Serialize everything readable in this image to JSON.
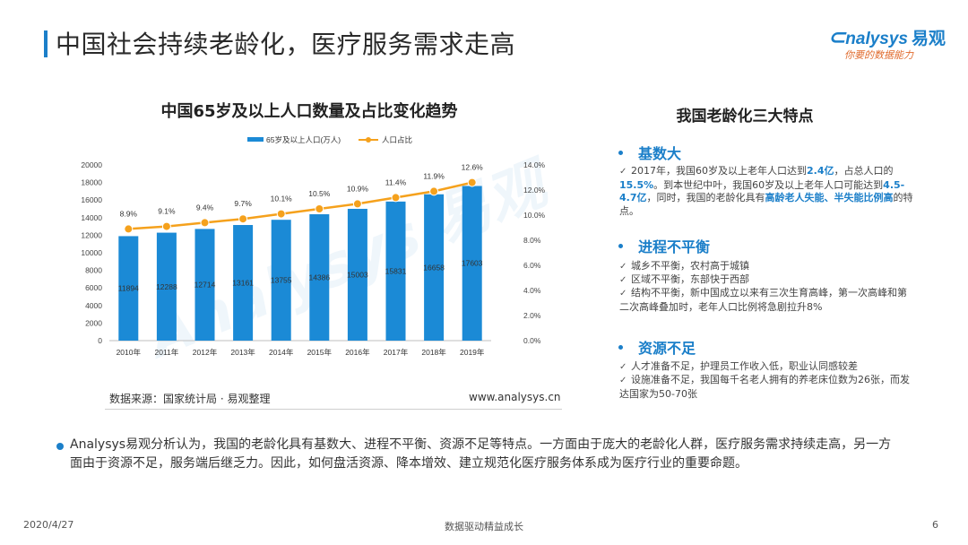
{
  "header": {
    "title": "中国社会持续老龄化，医疗服务需求走高",
    "logo_main": "nalysys",
    "logo_cn": "易观",
    "logo_sub": "你要的数据能力"
  },
  "chart_title": "中国65岁及以上人口数量及占比变化趋势",
  "chart_data": {
    "type": "bar+line",
    "categories": [
      "2010年",
      "2011年",
      "2012年",
      "2013年",
      "2014年",
      "2015年",
      "2016年",
      "2017年",
      "2018年",
      "2019年"
    ],
    "series": [
      {
        "name": "65岁及以上人口(万人)",
        "type": "bar",
        "axis": "left",
        "color": "#1b8ad6",
        "values": [
          11894,
          12288,
          12714,
          13161,
          13755,
          14386,
          15003,
          15831,
          16658,
          17603
        ]
      },
      {
        "name": "人口占比",
        "type": "line",
        "axis": "right",
        "color": "#f5a11c",
        "values": [
          8.9,
          9.1,
          9.4,
          9.7,
          10.1,
          10.5,
          10.9,
          11.4,
          11.9,
          12.6
        ]
      }
    ],
    "bar_labels": [
      "11894",
      "12288",
      "12714",
      "13161",
      "13755",
      "14386",
      "15003",
      "15831",
      "16658",
      "17603"
    ],
    "line_labels": [
      "8.9%",
      "9.1%",
      "9.4%",
      "9.7%",
      "10.1%",
      "10.5%",
      "10.9%",
      "11.4%",
      "11.9%",
      "12.6%"
    ],
    "y_left": {
      "min": 0,
      "max": 20000,
      "ticks": [
        "0",
        "2000",
        "4000",
        "6000",
        "8000",
        "10000",
        "12000",
        "14000",
        "16000",
        "18000",
        "20000"
      ]
    },
    "y_right": {
      "min": 0,
      "max": 14,
      "ticks": [
        "0.0%",
        "2.0%",
        "4.0%",
        "6.0%",
        "8.0%",
        "10.0%",
        "12.0%",
        "14.0%"
      ]
    },
    "legend_position": "top",
    "grid": false
  },
  "chart_source": "数据来源：国家统计局 · 易观整理",
  "chart_site": "www.analysys.cn",
  "features": {
    "title": "我国老龄化三大特点",
    "s1": {
      "heading": "基数大",
      "t1": "2017年，我国60岁及以上老年人口达到",
      "h1": "2.4亿",
      "t2": "，占总人口的",
      "h2": "15.5%",
      "t3": "。到本世纪中叶，我国60岁及以上老年人口可能达到",
      "h3": "4.5-4.7亿",
      "t4": "，同时，我国的老龄化具有",
      "h4": "高龄老人失能、半失能比例高",
      "t5": "的特点。"
    },
    "s2": {
      "heading": "进程不平衡",
      "items": [
        "城乡不平衡，农村高于城镇",
        "区域不平衡，东部快于西部",
        "结构不平衡，新中国成立以来有三次生育高峰，第一次高峰和第二次高峰叠加时，老年人口比例将急剧拉升8%"
      ]
    },
    "s3": {
      "heading": "资源不足",
      "items": [
        "人才准备不足，护理员工作收入低，职业认同感较差",
        "设施准备不足，我国每千名老人拥有的养老床位数为26张，而发达国家为50-70张"
      ]
    }
  },
  "check_mark": "✓",
  "summary": "Analysys易观分析认为，我国的老龄化具有基数大、进程不平衡、资源不足等特点。一方面由于庞大的老龄化人群，医疗服务需求持续走高，另一方面由于资源不足，服务端后继乏力。因此，如何盘活资源、降本增效、建立规范化医疗服务体系成为医疗行业的重要命题。",
  "footer": {
    "date": "2020/4/27",
    "center": "数据驱动精益成长",
    "page": "6"
  }
}
